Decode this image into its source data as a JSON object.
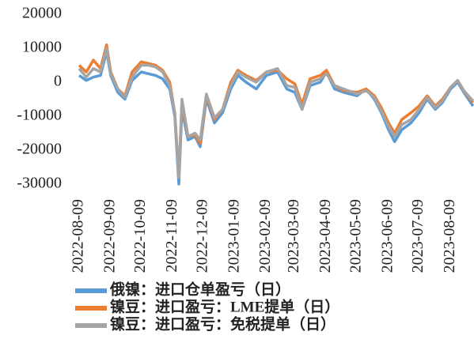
{
  "chart_data": {
    "type": "line",
    "x": [
      "2022-08-09",
      "2022-08-16",
      "2022-08-23",
      "2022-08-30",
      "2022-09-05",
      "2022-09-09",
      "2022-09-16",
      "2022-09-23",
      "2022-09-30",
      "2022-10-09",
      "2022-10-16",
      "2022-10-23",
      "2022-10-30",
      "2022-11-06",
      "2022-11-11",
      "2022-11-15",
      "2022-11-18",
      "2022-11-24",
      "2022-12-01",
      "2022-12-06",
      "2022-12-12",
      "2022-12-20",
      "2022-12-28",
      "2023-01-05",
      "2023-01-12",
      "2023-01-20",
      "2023-01-30",
      "2023-02-09",
      "2023-02-20",
      "2023-03-01",
      "2023-03-09",
      "2023-03-16",
      "2023-03-24",
      "2023-04-03",
      "2023-04-09",
      "2023-04-17",
      "2023-04-26",
      "2023-05-09",
      "2023-05-18",
      "2023-05-26",
      "2023-06-02",
      "2023-06-09",
      "2023-06-15",
      "2023-06-22",
      "2023-07-01",
      "2023-07-09",
      "2023-07-17",
      "2023-07-25",
      "2023-08-01",
      "2023-08-09",
      "2023-08-16",
      "2023-08-22",
      "2023-08-31"
    ],
    "series": [
      {
        "name": "俄镍：进口仓单盈亏（日）",
        "color": "#5b9bd5",
        "values": [
          2000,
          500,
          1500,
          2000,
          9000,
          2000,
          -3000,
          -5000,
          500,
          3000,
          2500,
          2000,
          1000,
          -2000,
          -10000,
          -30000,
          -8000,
          -17000,
          -16000,
          -19000,
          -5000,
          -12000,
          -9000,
          -2000,
          2000,
          0,
          -2000,
          2000,
          3000,
          -2000,
          -3000,
          -8000,
          -1000,
          0,
          3000,
          -2000,
          -3000,
          -4000,
          -2000,
          -5000,
          -9000,
          -14000,
          -17500,
          -14000,
          -12000,
          -9000,
          -5000,
          -8000,
          -6000,
          -2000,
          0,
          -3000,
          -7000
        ]
      },
      {
        "name": "镍豆：进口盈亏：LME提单（日）",
        "color": "#ed7d31",
        "values": [
          5000,
          3000,
          6500,
          4000,
          11000,
          3000,
          -2000,
          -4000,
          3000,
          6000,
          5500,
          5000,
          3500,
          0,
          -9000,
          -28000,
          -6000,
          -16000,
          -15500,
          -18000,
          -4000,
          -11000,
          -8000,
          0,
          3500,
          2000,
          500,
          3000,
          3500,
          1000,
          -500,
          -6500,
          1000,
          2000,
          3500,
          -1000,
          -2500,
          -3000,
          -2000,
          -4000,
          -7500,
          -12000,
          -15000,
          -11000,
          -9000,
          -7000,
          -4000,
          -7000,
          -5000,
          -1500,
          500,
          -2500,
          -6000
        ]
      },
      {
        "name": "镍豆：进口盈亏：免税提单（日）",
        "color": "#a5a5a5",
        "values": [
          4000,
          1500,
          4000,
          3000,
          10000,
          2500,
          -2000,
          -4500,
          1500,
          5000,
          5000,
          4500,
          3000,
          -1000,
          -9000,
          -28000,
          -5000,
          -16000,
          -15000,
          -17000,
          -3500,
          -10500,
          -8000,
          -1000,
          3000,
          1500,
          0,
          3000,
          4000,
          -1000,
          -1500,
          -8000,
          0,
          1000,
          2500,
          -1000,
          -2000,
          -3500,
          -2500,
          -4500,
          -8500,
          -13000,
          -16000,
          -12500,
          -11000,
          -8000,
          -4500,
          -7500,
          -5500,
          -1500,
          500,
          -2500,
          -5500
        ]
      }
    ],
    "xlim": [
      "2022-08-09",
      "2023-09-01"
    ],
    "xticks": [
      "2022-08-09",
      "2022-09-09",
      "2022-10-09",
      "2022-11-09",
      "2022-12-09",
      "2023-01-09",
      "2023-02-09",
      "2023-03-09",
      "2023-04-09",
      "2023-05-09",
      "2023-06-09",
      "2023-07-09",
      "2023-08-09"
    ],
    "ylim": [
      -30000,
      20000
    ],
    "yticks": [
      20000,
      10000,
      0,
      -10000,
      -20000,
      -30000
    ],
    "legend": "bottom"
  }
}
